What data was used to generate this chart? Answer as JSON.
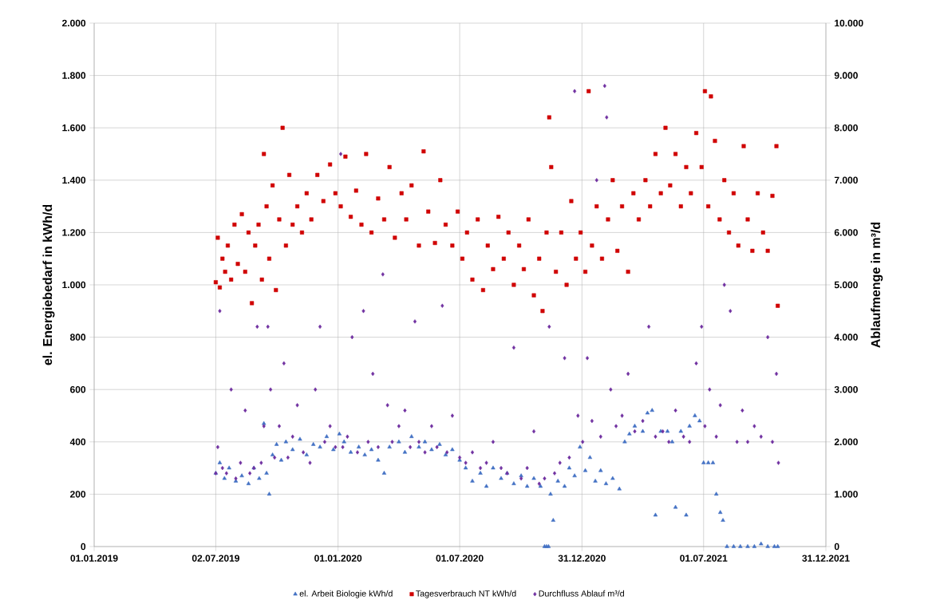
{
  "chart_data": {
    "type": "scatter",
    "ylabel": "el. Energiebedarf in kWh/d",
    "y2label": "Ablaufmenge in m³/d",
    "xlim": [
      "2019-01-01",
      "2021-12-31"
    ],
    "xticks": [
      {
        "value": "2019-01-01",
        "label": "01.01.2019"
      },
      {
        "value": "2019-07-02",
        "label": "02.07.2019"
      },
      {
        "value": "2020-01-01",
        "label": "01.01.2020"
      },
      {
        "value": "2020-07-01",
        "label": "01.07.2020"
      },
      {
        "value": "2020-12-31",
        "label": "31.12.2020"
      },
      {
        "value": "2021-07-01",
        "label": "01.07.2021"
      },
      {
        "value": "2021-12-31",
        "label": "31.12.2021"
      }
    ],
    "ylim": [
      0,
      2000
    ],
    "yticks": [
      0,
      200,
      400,
      600,
      800,
      {
        "value": 1000,
        "label": "1.000"
      },
      {
        "value": 1200,
        "label": "1.200"
      },
      {
        "value": 1400,
        "label": "1.400"
      },
      {
        "value": 1600,
        "label": "1.600"
      },
      {
        "value": 1800,
        "label": "1.800"
      },
      {
        "value": 2000,
        "label": "2.000"
      }
    ],
    "y2lim": [
      0,
      10000
    ],
    "y2ticks": [
      0,
      {
        "value": 1000,
        "label": "1.000"
      },
      {
        "value": 2000,
        "label": "2.000"
      },
      {
        "value": 3000,
        "label": "3.000"
      },
      {
        "value": 4000,
        "label": "4.000"
      },
      {
        "value": 5000,
        "label": "5.000"
      },
      {
        "value": 6000,
        "label": "6.000"
      },
      {
        "value": 7000,
        "label": "7.000"
      },
      {
        "value": 8000,
        "label": "8.000"
      },
      {
        "value": 9000,
        "label": "9.000"
      },
      {
        "value": 10000,
        "label": "10.000"
      }
    ],
    "grid": true,
    "legend": "bottom",
    "series": [
      {
        "name": "el. Arbeit Biologie kWh/d",
        "color": "#4472c4",
        "marker": "triangle",
        "x": [
          "2019-07-02",
          "2019-07-08",
          "2019-07-15",
          "2019-07-22",
          "2019-08-01",
          "2019-08-10",
          "2019-08-20",
          "2019-08-28",
          "2019-09-05",
          "2019-09-12",
          "2019-09-16",
          "2019-09-20",
          "2019-09-25",
          "2019-10-01",
          "2019-10-08",
          "2019-10-15",
          "2019-10-25",
          "2019-11-05",
          "2019-11-15",
          "2019-11-25",
          "2019-12-05",
          "2019-12-15",
          "2019-12-25",
          "2020-01-03",
          "2020-01-10",
          "2020-01-20",
          "2020-02-01",
          "2020-02-10",
          "2020-02-20",
          "2020-03-01",
          "2020-03-10",
          "2020-03-18",
          "2020-04-01",
          "2020-04-10",
          "2020-04-20",
          "2020-05-01",
          "2020-05-10",
          "2020-05-20",
          "2020-06-01",
          "2020-06-10",
          "2020-06-20",
          "2020-07-01",
          "2020-07-10",
          "2020-07-20",
          "2020-08-01",
          "2020-08-10",
          "2020-08-20",
          "2020-09-01",
          "2020-09-10",
          "2020-09-20",
          "2020-10-01",
          "2020-10-10",
          "2020-10-20",
          "2020-10-30",
          "2020-11-05",
          "2020-11-08",
          "2020-11-11",
          "2020-11-14",
          "2020-11-18",
          "2020-11-25",
          "2020-12-05",
          "2020-12-12",
          "2020-12-20",
          "2020-12-28",
          "2021-01-05",
          "2021-01-12",
          "2021-01-20",
          "2021-01-28",
          "2021-02-05",
          "2021-02-15",
          "2021-02-25",
          "2021-03-05",
          "2021-03-12",
          "2021-03-20",
          "2021-04-01",
          "2021-04-08",
          "2021-04-15",
          "2021-04-20",
          "2021-04-28",
          "2021-05-08",
          "2021-05-15",
          "2021-05-20",
          "2021-05-28",
          "2021-06-05",
          "2021-06-10",
          "2021-06-18",
          "2021-06-25",
          "2021-07-01",
          "2021-07-08",
          "2021-07-15",
          "2021-07-20",
          "2021-07-26",
          "2021-07-30",
          "2021-08-05",
          "2021-08-15",
          "2021-08-25",
          "2021-09-05",
          "2021-09-15",
          "2021-09-25",
          "2021-10-05",
          "2021-10-15",
          "2021-10-20"
        ],
        "values": [
          280,
          320,
          260,
          300,
          250,
          270,
          240,
          300,
          260,
          470,
          280,
          200,
          350,
          390,
          330,
          400,
          370,
          410,
          350,
          390,
          380,
          420,
          370,
          430,
          400,
          360,
          380,
          350,
          370,
          330,
          280,
          380,
          400,
          360,
          420,
          380,
          400,
          370,
          390,
          350,
          370,
          330,
          300,
          250,
          280,
          230,
          300,
          260,
          280,
          240,
          270,
          230,
          260,
          230,
          0,
          0,
          0,
          200,
          100,
          250,
          230,
          300,
          270,
          380,
          290,
          340,
          250,
          290,
          240,
          260,
          220,
          400,
          430,
          460,
          440,
          510,
          520,
          120,
          440,
          440,
          400,
          150,
          440,
          120,
          460,
          500,
          480,
          320,
          320,
          320,
          200,
          130,
          100,
          0,
          0,
          0,
          0,
          0,
          10,
          0,
          0,
          0
        ]
      },
      {
        "name": "Tagesverbrauch NT kWh/d",
        "color": "#d00000",
        "marker": "square",
        "x": [
          "2019-07-02",
          "2019-07-05",
          "2019-07-08",
          "2019-07-12",
          "2019-07-16",
          "2019-07-20",
          "2019-07-25",
          "2019-07-30",
          "2019-08-04",
          "2019-08-10",
          "2019-08-15",
          "2019-08-20",
          "2019-08-25",
          "2019-08-30",
          "2019-09-04",
          "2019-09-09",
          "2019-09-12",
          "2019-09-16",
          "2019-09-20",
          "2019-09-25",
          "2019-09-30",
          "2019-10-05",
          "2019-10-10",
          "2019-10-15",
          "2019-10-20",
          "2019-10-25",
          "2019-11-01",
          "2019-11-08",
          "2019-11-15",
          "2019-11-22",
          "2019-12-01",
          "2019-12-10",
          "2019-12-20",
          "2019-12-28",
          "2020-01-05",
          "2020-01-12",
          "2020-01-20",
          "2020-01-28",
          "2020-02-05",
          "2020-02-12",
          "2020-02-20",
          "2020-03-01",
          "2020-03-10",
          "2020-03-18",
          "2020-03-26",
          "2020-04-05",
          "2020-04-12",
          "2020-04-20",
          "2020-05-01",
          "2020-05-08",
          "2020-05-15",
          "2020-05-25",
          "2020-06-02",
          "2020-06-10",
          "2020-06-20",
          "2020-06-28",
          "2020-07-05",
          "2020-07-12",
          "2020-07-20",
          "2020-07-28",
          "2020-08-05",
          "2020-08-12",
          "2020-08-20",
          "2020-08-28",
          "2020-09-05",
          "2020-09-12",
          "2020-09-20",
          "2020-09-28",
          "2020-10-05",
          "2020-10-12",
          "2020-10-20",
          "2020-10-28",
          "2020-11-02",
          "2020-11-08",
          "2020-11-12",
          "2020-11-15",
          "2020-11-22",
          "2020-11-30",
          "2020-12-08",
          "2020-12-15",
          "2020-12-22",
          "2020-12-29",
          "2021-01-05",
          "2021-01-10",
          "2021-01-15",
          "2021-01-22",
          "2021-01-30",
          "2021-02-08",
          "2021-02-15",
          "2021-02-22",
          "2021-03-01",
          "2021-03-10",
          "2021-03-18",
          "2021-03-26",
          "2021-04-05",
          "2021-04-12",
          "2021-04-20",
          "2021-04-28",
          "2021-05-05",
          "2021-05-12",
          "2021-05-20",
          "2021-05-28",
          "2021-06-05",
          "2021-06-12",
          "2021-06-20",
          "2021-06-28",
          "2021-07-03",
          "2021-07-08",
          "2021-07-12",
          "2021-07-18",
          "2021-07-25",
          "2021-08-01",
          "2021-08-08",
          "2021-08-15",
          "2021-08-22",
          "2021-08-30",
          "2021-09-05",
          "2021-09-12",
          "2021-09-20",
          "2021-09-28",
          "2021-10-05",
          "2021-10-12",
          "2021-10-18",
          "2021-10-20"
        ],
        "values": [
          1010,
          1180,
          990,
          1100,
          1050,
          1150,
          1020,
          1230,
          1080,
          1270,
          1050,
          1200,
          930,
          1150,
          1230,
          1020,
          1500,
          1300,
          1100,
          1380,
          980,
          1250,
          1600,
          1150,
          1420,
          1230,
          1300,
          1200,
          1350,
          1250,
          1420,
          1320,
          1460,
          1350,
          1300,
          1490,
          1260,
          1360,
          1230,
          1500,
          1200,
          1330,
          1250,
          1450,
          1180,
          1350,
          1250,
          1380,
          1150,
          1510,
          1280,
          1160,
          1400,
          1230,
          1150,
          1280,
          1100,
          1200,
          1020,
          1250,
          980,
          1150,
          1060,
          1260,
          1100,
          1200,
          1000,
          1150,
          1060,
          1250,
          960,
          1100,
          900,
          1200,
          1640,
          1450,
          1050,
          1200,
          1000,
          1320,
          1100,
          1200,
          1050,
          1740,
          1150,
          1300,
          1100,
          1250,
          1400,
          1130,
          1300,
          1050,
          1350,
          1250,
          1400,
          1300,
          1500,
          1350,
          1600,
          1380,
          1500,
          1300,
          1450,
          1350,
          1580,
          1450,
          1740,
          1300,
          1720,
          1550,
          1250,
          1400,
          1200,
          1350,
          1150,
          1530,
          1250,
          1130,
          1350,
          1200,
          1130,
          1340,
          1530,
          920
        ]
      },
      {
        "name": "Durchfluss Ablauf m³/d",
        "color": "#7030a0",
        "marker": "diamond",
        "axis": "y2",
        "x": [
          "2019-07-02",
          "2019-07-05",
          "2019-07-08",
          "2019-07-12",
          "2019-07-18",
          "2019-07-25",
          "2019-08-01",
          "2019-08-08",
          "2019-08-15",
          "2019-08-22",
          "2019-08-28",
          "2019-09-02",
          "2019-09-08",
          "2019-09-12",
          "2019-09-18",
          "2019-09-22",
          "2019-09-28",
          "2019-10-05",
          "2019-10-12",
          "2019-10-18",
          "2019-10-25",
          "2019-11-01",
          "2019-11-10",
          "2019-11-20",
          "2019-11-28",
          "2019-12-05",
          "2019-12-12",
          "2019-12-20",
          "2019-12-28",
          "2020-01-05",
          "2020-01-08",
          "2020-01-15",
          "2020-01-22",
          "2020-01-30",
          "2020-02-08",
          "2020-02-15",
          "2020-02-22",
          "2020-03-01",
          "2020-03-08",
          "2020-03-15",
          "2020-03-22",
          "2020-04-01",
          "2020-04-10",
          "2020-04-18",
          "2020-04-25",
          "2020-05-01",
          "2020-05-10",
          "2020-05-20",
          "2020-05-28",
          "2020-06-05",
          "2020-06-12",
          "2020-06-20",
          "2020-07-01",
          "2020-07-10",
          "2020-07-20",
          "2020-08-01",
          "2020-08-10",
          "2020-08-20",
          "2020-09-01",
          "2020-09-10",
          "2020-09-20",
          "2020-10-01",
          "2020-10-10",
          "2020-10-20",
          "2020-10-28",
          "2020-11-05",
          "2020-11-12",
          "2020-11-20",
          "2020-11-28",
          "2020-12-05",
          "2020-12-12",
          "2020-12-20",
          "2020-12-25",
          "2021-01-01",
          "2021-01-08",
          "2021-01-15",
          "2021-01-22",
          "2021-01-28",
          "2021-02-03",
          "2021-02-06",
          "2021-02-12",
          "2021-02-20",
          "2021-03-01",
          "2021-03-10",
          "2021-03-20",
          "2021-04-01",
          "2021-04-10",
          "2021-04-20",
          "2021-05-01",
          "2021-05-10",
          "2021-05-20",
          "2021-06-01",
          "2021-06-10",
          "2021-06-20",
          "2021-06-28",
          "2021-07-03",
          "2021-07-10",
          "2021-07-20",
          "2021-07-26",
          "2021-08-01",
          "2021-08-10",
          "2021-08-20",
          "2021-08-28",
          "2021-09-05",
          "2021-09-15",
          "2021-09-25",
          "2021-10-05",
          "2021-10-12",
          "2021-10-18",
          "2021-10-21"
        ],
        "values": [
          1400,
          1900,
          4500,
          1500,
          1400,
          3000,
          1300,
          1600,
          2600,
          1400,
          1500,
          4200,
          1600,
          2300,
          4200,
          3000,
          1700,
          2300,
          3500,
          1700,
          2100,
          2700,
          1800,
          1600,
          3000,
          4200,
          2000,
          2300,
          1900,
          7500,
          1900,
          2100,
          4000,
          1800,
          4500,
          2000,
          3300,
          1900,
          5200,
          2700,
          2000,
          2300,
          2600,
          1900,
          4300,
          2000,
          1800,
          2300,
          1900,
          4600,
          1800,
          2500,
          1700,
          1600,
          1800,
          1500,
          1600,
          2000,
          1500,
          1400,
          3800,
          1300,
          1500,
          2200,
          1200,
          1300,
          4200,
          1400,
          1600,
          3600,
          1700,
          8700,
          2500,
          2000,
          3600,
          2400,
          7000,
          2100,
          8800,
          8200,
          3000,
          2300,
          2500,
          3300,
          2200,
          2400,
          4200,
          2100,
          2200,
          2000,
          2600,
          2100,
          2000,
          3500,
          4200,
          2300,
          3000,
          2100,
          2700,
          5000,
          4500,
          2000,
          2600,
          2000,
          2300,
          2100,
          4000,
          2000,
          3300,
          1600
        ]
      }
    ]
  }
}
